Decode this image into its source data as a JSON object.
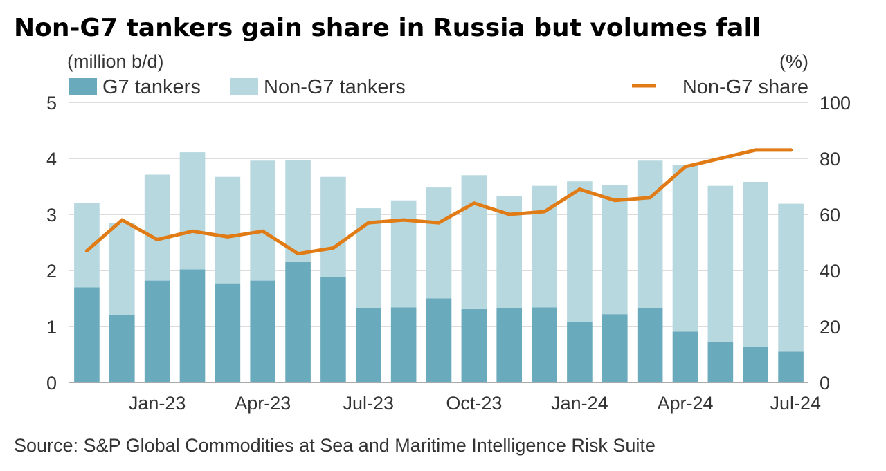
{
  "chart_data": {
    "type": "bar",
    "stacked": true,
    "title": "Non-G7 tankers gain share in Russia but volumes fall",
    "ylabel": "(million b/d)",
    "y2label": "(%)",
    "ylim": [
      0,
      5
    ],
    "y2lim": [
      0,
      100
    ],
    "yticks": [
      "0",
      "1",
      "2",
      "3",
      "4",
      "5"
    ],
    "y2ticks": [
      "0",
      "20",
      "40",
      "60",
      "80",
      "100"
    ],
    "grid": true,
    "legend_position": "top",
    "categories": [
      "Nov-22",
      "Dec-22",
      "Jan-23",
      "Feb-23",
      "Mar-23",
      "Apr-23",
      "May-23",
      "Jun-23",
      "Jul-23",
      "Aug-23",
      "Sep-23",
      "Oct-23",
      "Nov-23",
      "Dec-23",
      "Jan-24",
      "Feb-24",
      "Mar-24",
      "Apr-24",
      "May-24",
      "Jun-24",
      "Jul-24"
    ],
    "xtick_labels": [
      {
        "index": 2,
        "label": "Jan-23"
      },
      {
        "index": 5,
        "label": "Apr-23"
      },
      {
        "index": 8,
        "label": "Jul-23"
      },
      {
        "index": 11,
        "label": "Oct-23"
      },
      {
        "index": 14,
        "label": "Jan-24"
      },
      {
        "index": 17,
        "label": "Apr-24"
      },
      {
        "index": 20,
        "label": "Jul-24"
      }
    ],
    "series": [
      {
        "name": "G7 tankers",
        "kind": "bar",
        "axis": "left",
        "color": "#6aaabd",
        "values": [
          1.7,
          1.21,
          1.82,
          2.02,
          1.77,
          1.82,
          2.15,
          1.88,
          1.33,
          1.34,
          1.5,
          1.31,
          1.33,
          1.34,
          1.08,
          1.22,
          1.33,
          0.91,
          0.72,
          0.64,
          0.55
        ]
      },
      {
        "name": "Non-G7 tankers",
        "kind": "bar",
        "axis": "left",
        "color": "#b7d8df",
        "values": [
          1.5,
          1.64,
          1.89,
          2.09,
          1.9,
          2.14,
          1.82,
          1.79,
          1.78,
          1.91,
          1.98,
          2.39,
          2.0,
          2.17,
          2.51,
          2.3,
          2.63,
          2.97,
          2.79,
          2.94,
          2.64
        ]
      },
      {
        "name": "Non-G7 share",
        "kind": "line",
        "axis": "right",
        "color": "#e07b15",
        "values": [
          47,
          58,
          51,
          54,
          52,
          54,
          46,
          48,
          57,
          58,
          57,
          64,
          60,
          61,
          69,
          65,
          66,
          77,
          80,
          83,
          83
        ]
      }
    ]
  },
  "source": "Source: S&P Global Commodities at Sea and Maritime Intelligence Risk Suite"
}
